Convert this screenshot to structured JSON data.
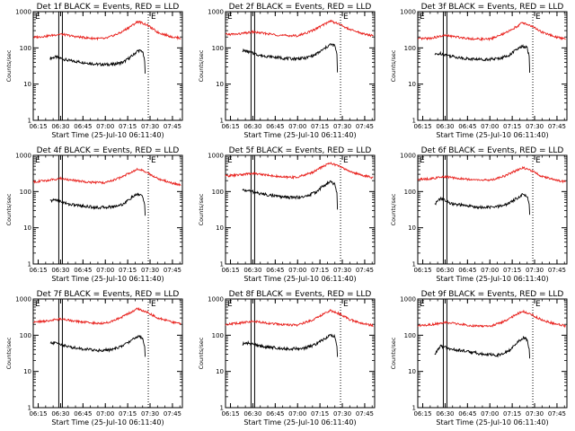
{
  "figure": {
    "background": "#ffffff"
  },
  "colors": {
    "events": "#000000",
    "lld": "#e8201c",
    "axes": "#000000"
  },
  "chart_data": [
    {
      "type": "line",
      "title": "Det 1f BLACK = Events, RED = LLD",
      "xlabel": "Start Time (25-Jul-10 06:11:40)",
      "ylabel": "Counts/sec",
      "yscale": "log",
      "ylim": [
        1,
        1000
      ],
      "xlim": [
        "06:11:40",
        "07:51:40"
      ],
      "xticks": [
        "06:15",
        "06:30",
        "06:45",
        "07:00",
        "07:15",
        "07:30",
        "07:45"
      ],
      "yticks": [
        "1",
        "10",
        "100",
        "1000"
      ],
      "annotations": [
        "E",
        "E"
      ],
      "series": [
        {
          "name": "Events",
          "color": "#000000",
          "x": [
            "06:23",
            "06:27",
            "06:35",
            "06:45",
            "06:55",
            "07:05",
            "07:12",
            "07:18",
            "07:22",
            "07:25",
            "07:26:30",
            "07:27"
          ],
          "y": [
            52,
            56,
            45,
            40,
            35,
            35,
            40,
            60,
            85,
            80,
            40,
            6
          ]
        },
        {
          "name": "LLD",
          "color": "#e8201c",
          "x": [
            "06:11:40",
            "06:20",
            "06:30",
            "06:40",
            "06:50",
            "07:00",
            "07:10",
            "07:18",
            "07:22",
            "07:28",
            "07:35",
            "07:45",
            "07:51"
          ],
          "y": [
            195,
            210,
            240,
            205,
            185,
            180,
            260,
            420,
            540,
            430,
            270,
            200,
            185
          ]
        }
      ]
    },
    {
      "type": "line",
      "title": "Det 2f BLACK = Events, RED = LLD",
      "xlabel": "Start Time (25-Jul-10 06:11:40)",
      "ylabel": "Counts/sec",
      "yscale": "log",
      "ylim": [
        1,
        1000
      ],
      "xlim": [
        "06:11:40",
        "07:51:40"
      ],
      "xticks": [
        "06:15",
        "06:30",
        "06:45",
        "07:00",
        "07:15",
        "07:30",
        "07:45"
      ],
      "yticks": [
        "1",
        "10",
        "100",
        "1000"
      ],
      "annotations": [
        "E",
        "E"
      ],
      "series": [
        {
          "name": "Events",
          "color": "#000000",
          "x": [
            "06:23",
            "06:27",
            "06:35",
            "06:45",
            "06:55",
            "07:05",
            "07:12",
            "07:18",
            "07:22",
            "07:25",
            "07:26:30",
            "07:27"
          ],
          "y": [
            85,
            78,
            62,
            55,
            50,
            52,
            65,
            95,
            125,
            115,
            60,
            5
          ]
        },
        {
          "name": "LLD",
          "color": "#e8201c",
          "x": [
            "06:11:40",
            "06:20",
            "06:30",
            "06:40",
            "06:50",
            "07:00",
            "07:10",
            "07:18",
            "07:22",
            "07:28",
            "07:35",
            "07:45",
            "07:51"
          ],
          "y": [
            235,
            240,
            275,
            245,
            220,
            215,
            300,
            450,
            560,
            450,
            320,
            240,
            215
          ]
        }
      ]
    },
    {
      "type": "line",
      "title": "Det 3f BLACK = Events, RED = LLD",
      "xlabel": "Start Time (25-Jul-10 06:11:40)",
      "ylabel": "Counts/sec",
      "yscale": "log",
      "ylim": [
        1,
        1000
      ],
      "xlim": [
        "06:11:40",
        "07:51:40"
      ],
      "xticks": [
        "06:15",
        "06:30",
        "06:45",
        "07:00",
        "07:15",
        "07:30",
        "07:45"
      ],
      "yticks": [
        "1",
        "10",
        "100",
        "1000"
      ],
      "annotations": [
        "E",
        "E"
      ],
      "series": [
        {
          "name": "Events",
          "color": "#000000",
          "x": [
            "06:23",
            "06:27",
            "06:35",
            "06:45",
            "06:55",
            "07:05",
            "07:12",
            "07:18",
            "07:22",
            "07:25",
            "07:26:30",
            "07:27"
          ],
          "y": [
            65,
            70,
            58,
            50,
            48,
            50,
            60,
            90,
            110,
            100,
            55,
            5
          ]
        },
        {
          "name": "LLD",
          "color": "#e8201c",
          "x": [
            "06:11:40",
            "06:20",
            "06:30",
            "06:40",
            "06:50",
            "07:00",
            "07:10",
            "07:18",
            "07:22",
            "07:28",
            "07:35",
            "07:45",
            "07:51"
          ],
          "y": [
            175,
            185,
            220,
            195,
            175,
            175,
            250,
            390,
            500,
            400,
            270,
            195,
            180
          ]
        }
      ]
    },
    {
      "type": "line",
      "title": "Det 4f BLACK = Events, RED = LLD",
      "xlabel": "Start Time (25-Jul-10 06:11:40)",
      "ylabel": "Counts/sec",
      "yscale": "log",
      "ylim": [
        1,
        1000
      ],
      "xlim": [
        "06:11:40",
        "07:51:40"
      ],
      "xticks": [
        "06:15",
        "06:30",
        "06:45",
        "07:00",
        "07:15",
        "07:30",
        "07:45"
      ],
      "yticks": [
        "1",
        "10",
        "100",
        "1000"
      ],
      "annotations": [
        "E",
        "E"
      ],
      "series": [
        {
          "name": "Events",
          "color": "#000000",
          "x": [
            "06:23",
            "06:27",
            "06:35",
            "06:45",
            "06:55",
            "07:05",
            "07:12",
            "07:18",
            "07:22",
            "07:25",
            "07:26:30",
            "07:27"
          ],
          "y": [
            55,
            60,
            45,
            40,
            36,
            38,
            45,
            70,
            85,
            75,
            40,
            9
          ]
        },
        {
          "name": "LLD",
          "color": "#e8201c",
          "x": [
            "06:11:40",
            "06:20",
            "06:30",
            "06:40",
            "06:50",
            "07:00",
            "07:10",
            "07:18",
            "07:22",
            "07:28",
            "07:35",
            "07:45",
            "07:51"
          ],
          "y": [
            185,
            200,
            230,
            200,
            180,
            175,
            240,
            360,
            420,
            330,
            230,
            170,
            150
          ]
        }
      ]
    },
    {
      "type": "line",
      "title": "Det 5f BLACK = Events, RED = LLD",
      "xlabel": "Start Time (25-Jul-10 06:11:40)",
      "ylabel": "Counts/sec",
      "yscale": "log",
      "ylim": [
        1,
        1000
      ],
      "xlim": [
        "06:11:40",
        "07:51:40"
      ],
      "xticks": [
        "06:15",
        "06:30",
        "06:45",
        "07:00",
        "07:15",
        "07:30",
        "07:45"
      ],
      "yticks": [
        "1",
        "10",
        "100",
        "1000"
      ],
      "annotations": [
        "E",
        "E"
      ],
      "series": [
        {
          "name": "Events",
          "color": "#000000",
          "x": [
            "06:23",
            "06:27",
            "06:35",
            "06:45",
            "06:55",
            "07:05",
            "07:12",
            "07:18",
            "07:22",
            "07:25",
            "07:26:30",
            "07:27"
          ],
          "y": [
            110,
            105,
            88,
            75,
            68,
            72,
            95,
            150,
            185,
            160,
            85,
            8
          ]
        },
        {
          "name": "LLD",
          "color": "#e8201c",
          "x": [
            "06:11:40",
            "06:20",
            "06:30",
            "06:40",
            "06:50",
            "07:00",
            "07:10",
            "07:18",
            "07:22",
            "07:28",
            "07:35",
            "07:45",
            "07:51"
          ],
          "y": [
            270,
            285,
            320,
            285,
            250,
            250,
            340,
            520,
            620,
            500,
            360,
            270,
            240
          ]
        }
      ]
    },
    {
      "type": "line",
      "title": "Det 6f BLACK = Events, RED = LLD",
      "xlabel": "Start Time (25-Jul-10 06:11:40)",
      "ylabel": "Counts/sec",
      "yscale": "log",
      "ylim": [
        1,
        1000
      ],
      "xlim": [
        "06:11:40",
        "07:51:40"
      ],
      "xticks": [
        "06:15",
        "06:30",
        "06:45",
        "07:00",
        "07:15",
        "07:30",
        "07:45"
      ],
      "yticks": [
        "1",
        "10",
        "100",
        "1000"
      ],
      "annotations": [
        "E",
        "E"
      ],
      "series": [
        {
          "name": "Events",
          "color": "#000000",
          "x": [
            "06:23",
            "06:27",
            "06:35",
            "06:45",
            "06:55",
            "07:05",
            "07:12",
            "07:18",
            "07:22",
            "07:25",
            "07:26:30",
            "07:27"
          ],
          "y": [
            45,
            65,
            45,
            40,
            36,
            38,
            45,
            65,
            85,
            75,
            40,
            11
          ]
        },
        {
          "name": "LLD",
          "color": "#e8201c",
          "x": [
            "06:11:40",
            "06:20",
            "06:30",
            "06:40",
            "06:50",
            "07:00",
            "07:10",
            "07:18",
            "07:22",
            "07:28",
            "07:35",
            "07:45",
            "07:51"
          ],
          "y": [
            215,
            225,
            255,
            230,
            210,
            205,
            270,
            390,
            460,
            370,
            260,
            205,
            185
          ]
        }
      ]
    },
    {
      "type": "line",
      "title": "Det 7f BLACK = Events, RED = LLD",
      "xlabel": "Start Time (25-Jul-10 06:11:40)",
      "ylabel": "Counts/sec",
      "yscale": "log",
      "ylim": [
        1,
        1000
      ],
      "xlim": [
        "06:11:40",
        "07:51:40"
      ],
      "xticks": [
        "06:15",
        "06:30",
        "06:45",
        "07:00",
        "07:15",
        "07:30",
        "07:45"
      ],
      "yticks": [
        "1",
        "10",
        "100",
        "1000"
      ],
      "annotations": [
        "E",
        "E"
      ],
      "series": [
        {
          "name": "Events",
          "color": "#000000",
          "x": [
            "06:23",
            "06:27",
            "06:35",
            "06:45",
            "06:55",
            "07:05",
            "07:12",
            "07:18",
            "07:22",
            "07:25",
            "07:26:30",
            "07:27"
          ],
          "y": [
            60,
            62,
            48,
            42,
            38,
            40,
            52,
            75,
            95,
            85,
            45,
            10
          ]
        },
        {
          "name": "LLD",
          "color": "#e8201c",
          "x": [
            "06:11:40",
            "06:20",
            "06:30",
            "06:40",
            "06:50",
            "07:00",
            "07:10",
            "07:18",
            "07:22",
            "07:28",
            "07:35",
            "07:45",
            "07:51"
          ],
          "y": [
            230,
            245,
            280,
            245,
            220,
            215,
            300,
            450,
            540,
            430,
            300,
            230,
            210
          ]
        }
      ]
    },
    {
      "type": "line",
      "title": "Det 8f BLACK = Events, RED = LLD",
      "xlabel": "Start Time (25-Jul-10 06:11:40)",
      "ylabel": "Counts/sec",
      "yscale": "log",
      "ylim": [
        1,
        1000
      ],
      "xlim": [
        "06:11:40",
        "07:51:40"
      ],
      "xticks": [
        "06:15",
        "06:30",
        "06:45",
        "07:00",
        "07:15",
        "07:30",
        "07:45"
      ],
      "yticks": [
        "1",
        "10",
        "100",
        "1000"
      ],
      "annotations": [
        "E",
        "E"
      ],
      "series": [
        {
          "name": "Events",
          "color": "#000000",
          "x": [
            "06:23",
            "06:27",
            "06:35",
            "06:45",
            "06:55",
            "07:05",
            "07:12",
            "07:18",
            "07:22",
            "07:25",
            "07:26:30",
            "07:27"
          ],
          "y": [
            58,
            60,
            50,
            45,
            42,
            44,
            55,
            80,
            100,
            90,
            48,
            10
          ]
        },
        {
          "name": "LLD",
          "color": "#e8201c",
          "x": [
            "06:11:40",
            "06:20",
            "06:30",
            "06:40",
            "06:50",
            "07:00",
            "07:10",
            "07:18",
            "07:22",
            "07:28",
            "07:35",
            "07:45",
            "07:51"
          ],
          "y": [
            200,
            215,
            245,
            215,
            195,
            190,
            265,
            400,
            480,
            390,
            270,
            205,
            185
          ]
        }
      ]
    },
    {
      "type": "line",
      "title": "Det 9f BLACK = Events, RED = LLD",
      "xlabel": "Start Time (25-Jul-10 06:11:40)",
      "ylabel": "Counts/sec",
      "yscale": "log",
      "ylim": [
        1,
        1000
      ],
      "xlim": [
        "06:11:40",
        "07:51:40"
      ],
      "xticks": [
        "06:15",
        "06:30",
        "06:45",
        "07:00",
        "07:15",
        "07:30",
        "07:45"
      ],
      "yticks": [
        "1",
        "10",
        "100",
        "1000"
      ],
      "annotations": [
        "E",
        "E"
      ],
      "series": [
        {
          "name": "Events",
          "color": "#000000",
          "x": [
            "06:23",
            "06:27",
            "06:35",
            "06:45",
            "06:55",
            "07:05",
            "07:12",
            "07:18",
            "07:22",
            "07:25",
            "07:26:30",
            "07:27"
          ],
          "y": [
            30,
            50,
            40,
            36,
            30,
            28,
            35,
            60,
            85,
            75,
            40,
            10
          ]
        },
        {
          "name": "LLD",
          "color": "#e8201c",
          "x": [
            "06:11:40",
            "06:20",
            "06:30",
            "06:40",
            "06:50",
            "07:00",
            "07:10",
            "07:18",
            "07:22",
            "07:28",
            "07:35",
            "07:45",
            "07:51"
          ],
          "y": [
            185,
            195,
            225,
            200,
            180,
            175,
            245,
            380,
            460,
            370,
            260,
            200,
            180
          ]
        }
      ]
    }
  ]
}
